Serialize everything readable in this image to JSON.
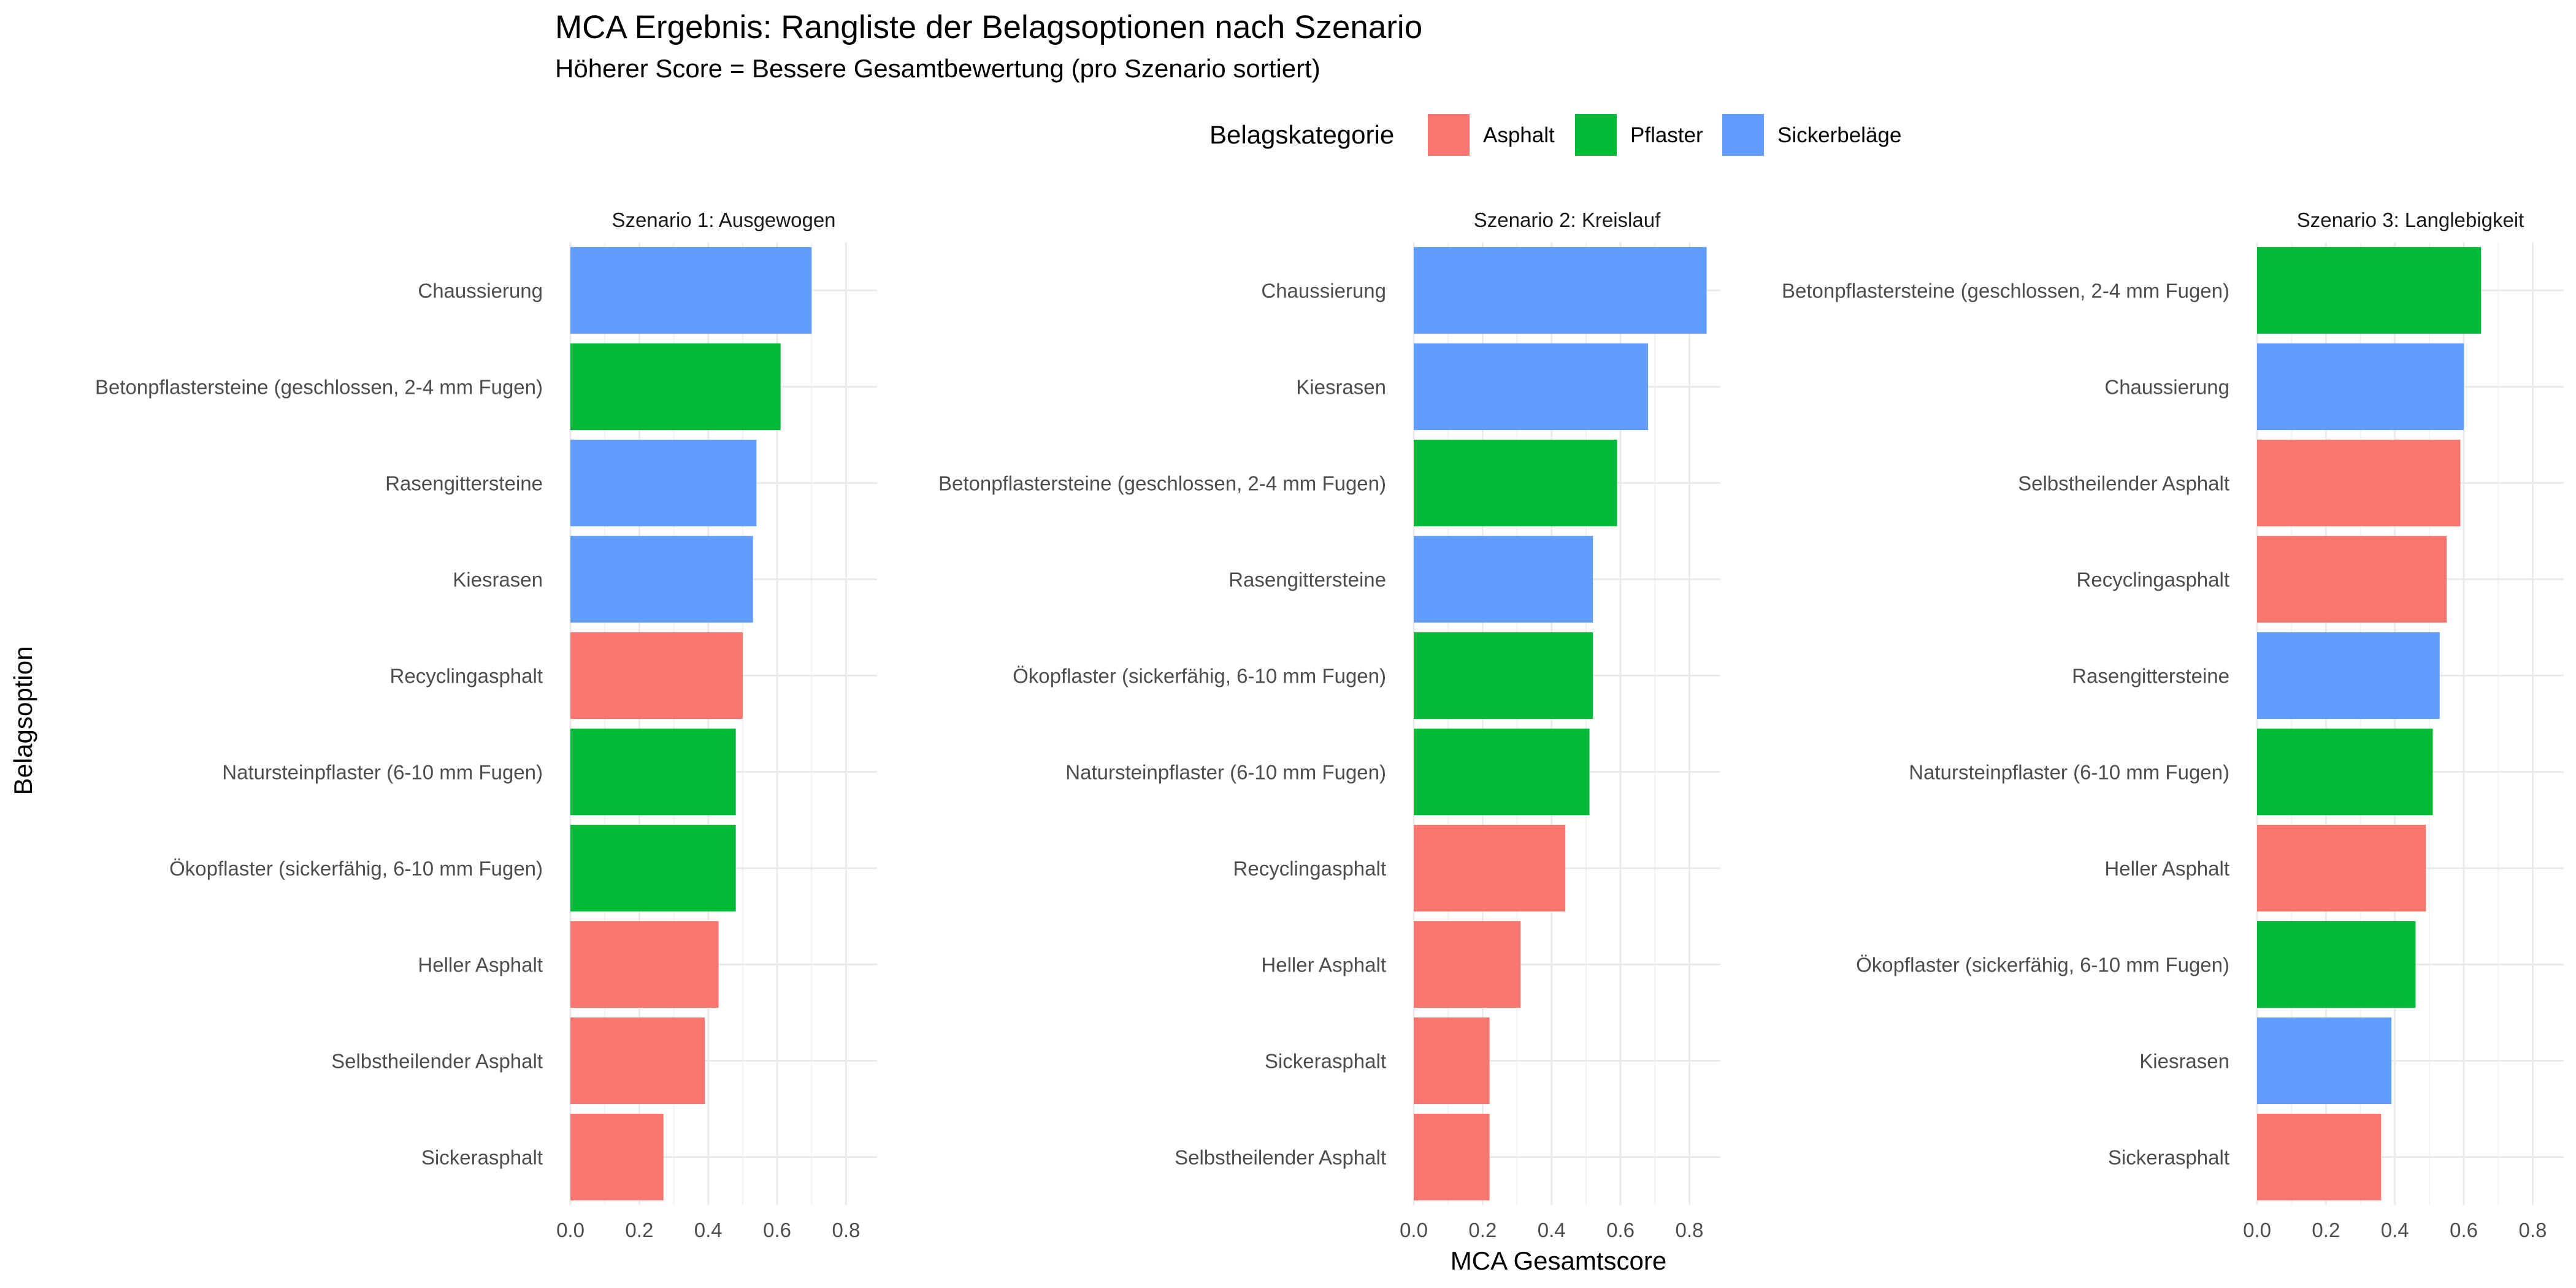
{
  "chart_data": {
    "type": "bar",
    "orientation": "horizontal",
    "title": "MCA Ergebnis: Rangliste der Belagsoptionen nach Szenario",
    "subtitle": "Höherer Score = Bessere Gesamtbewertung (pro Szenario sortiert)",
    "xlabel": "MCA Gesamtscore",
    "ylabel": "Belagsoption",
    "xlim": [
      0,
      0.89
    ],
    "x_ticks": [
      0.0,
      0.2,
      0.4,
      0.6,
      0.8
    ],
    "x_tick_labels": [
      "0.0",
      "0.2",
      "0.4",
      "0.6",
      "0.8"
    ],
    "grid": true,
    "legend": {
      "title": "Belagskategorie",
      "position": "top",
      "entries": [
        {
          "name": "Asphalt",
          "color": "#F8766D"
        },
        {
          "name": "Pflaster",
          "color": "#00BA38"
        },
        {
          "name": "Sickerbeläge",
          "color": "#619CFF"
        }
      ]
    },
    "panels": [
      {
        "title": "Szenario 1: Ausgewogen",
        "bars": [
          {
            "label": "Chaussierung",
            "value": 0.7,
            "category": "Sickerbeläge"
          },
          {
            "label": "Betonpflastersteine (geschlossen, 2-4 mm Fugen)",
            "value": 0.61,
            "category": "Pflaster"
          },
          {
            "label": "Rasengittersteine",
            "value": 0.54,
            "category": "Sickerbeläge"
          },
          {
            "label": "Kiesrasen",
            "value": 0.53,
            "category": "Sickerbeläge"
          },
          {
            "label": "Recyclingasphalt",
            "value": 0.5,
            "category": "Asphalt"
          },
          {
            "label": "Natursteinpflaster (6-10 mm Fugen)",
            "value": 0.48,
            "category": "Pflaster"
          },
          {
            "label": "Ökopflaster (sickerfähig, 6-10 mm Fugen)",
            "value": 0.48,
            "category": "Pflaster"
          },
          {
            "label": "Heller Asphalt",
            "value": 0.43,
            "category": "Asphalt"
          },
          {
            "label": "Selbstheilender Asphalt",
            "value": 0.39,
            "category": "Asphalt"
          },
          {
            "label": "Sickerasphalt",
            "value": 0.27,
            "category": "Asphalt"
          }
        ]
      },
      {
        "title": "Szenario 2: Kreislauf",
        "bars": [
          {
            "label": "Chaussierung",
            "value": 0.85,
            "category": "Sickerbeläge"
          },
          {
            "label": "Kiesrasen",
            "value": 0.68,
            "category": "Sickerbeläge"
          },
          {
            "label": "Betonpflastersteine (geschlossen, 2-4 mm Fugen)",
            "value": 0.59,
            "category": "Pflaster"
          },
          {
            "label": "Rasengittersteine",
            "value": 0.52,
            "category": "Sickerbeläge"
          },
          {
            "label": "Ökopflaster (sickerfähig, 6-10 mm Fugen)",
            "value": 0.52,
            "category": "Pflaster"
          },
          {
            "label": "Natursteinpflaster (6-10 mm Fugen)",
            "value": 0.51,
            "category": "Pflaster"
          },
          {
            "label": "Recyclingasphalt",
            "value": 0.44,
            "category": "Asphalt"
          },
          {
            "label": "Heller Asphalt",
            "value": 0.31,
            "category": "Asphalt"
          },
          {
            "label": "Sickerasphalt",
            "value": 0.22,
            "category": "Asphalt"
          },
          {
            "label": "Selbstheilender Asphalt",
            "value": 0.22,
            "category": "Asphalt"
          }
        ]
      },
      {
        "title": "Szenario 3: Langlebigkeit",
        "bars": [
          {
            "label": "Betonpflastersteine (geschlossen, 2-4 mm Fugen)",
            "value": 0.65,
            "category": "Pflaster"
          },
          {
            "label": "Chaussierung",
            "value": 0.6,
            "category": "Sickerbeläge"
          },
          {
            "label": "Selbstheilender Asphalt",
            "value": 0.59,
            "category": "Asphalt"
          },
          {
            "label": "Recyclingasphalt",
            "value": 0.55,
            "category": "Asphalt"
          },
          {
            "label": "Rasengittersteine",
            "value": 0.53,
            "category": "Sickerbeläge"
          },
          {
            "label": "Natursteinpflaster (6-10 mm Fugen)",
            "value": 0.51,
            "category": "Pflaster"
          },
          {
            "label": "Heller Asphalt",
            "value": 0.49,
            "category": "Asphalt"
          },
          {
            "label": "Ökopflaster (sickerfähig, 6-10 mm Fugen)",
            "value": 0.46,
            "category": "Pflaster"
          },
          {
            "label": "Kiesrasen",
            "value": 0.39,
            "category": "Sickerbeläge"
          },
          {
            "label": "Sickerasphalt",
            "value": 0.36,
            "category": "Asphalt"
          }
        ]
      }
    ]
  }
}
